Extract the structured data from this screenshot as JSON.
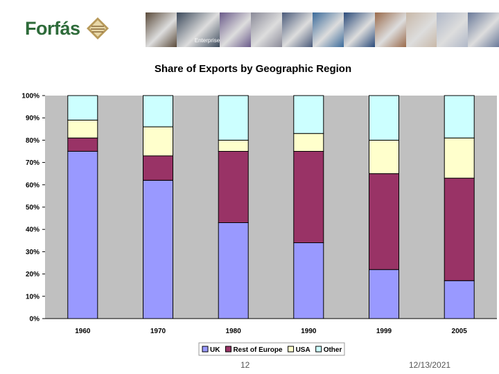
{
  "logo": {
    "text": "Forfás"
  },
  "photo_strip": {
    "colors": [
      "#5a4a3a",
      "#3c4a5c",
      "#6a5a8a",
      "#8a8a98",
      "#4a5a7a",
      "#3a6a9a",
      "#2a4a7a",
      "#9a6a4a",
      "#c8b8a8",
      "#b0b8c8",
      "#6a7a9a"
    ],
    "caption": "Enterprise"
  },
  "chart_data": {
    "type": "bar",
    "stacked": true,
    "title": "Share of Exports by Geographic Region",
    "categories": [
      "1960",
      "1970",
      "1980",
      "1990",
      "1999",
      "2005"
    ],
    "series": [
      {
        "name": "UK",
        "color": "#9999ff",
        "values": [
          75,
          62,
          43,
          34,
          22,
          17
        ]
      },
      {
        "name": "Rest of Europe",
        "color": "#993366",
        "values": [
          6,
          11,
          32,
          41,
          43,
          46
        ]
      },
      {
        "name": "USA",
        "color": "#ffffcc",
        "values": [
          8,
          13,
          5,
          8,
          15,
          18
        ]
      },
      {
        "name": "Other",
        "color": "#ccffff",
        "values": [
          11,
          14,
          20,
          17,
          20,
          19
        ]
      }
    ],
    "ylim": [
      0,
      100
    ],
    "yticks": [
      "0%",
      "10%",
      "20%",
      "30%",
      "40%",
      "50%",
      "60%",
      "70%",
      "80%",
      "90%",
      "100%"
    ],
    "plot_background": "#c0c0c0",
    "grid": false,
    "legend_position": "bottom"
  },
  "footer": {
    "page_number": "12",
    "date": "12/13/2021"
  }
}
